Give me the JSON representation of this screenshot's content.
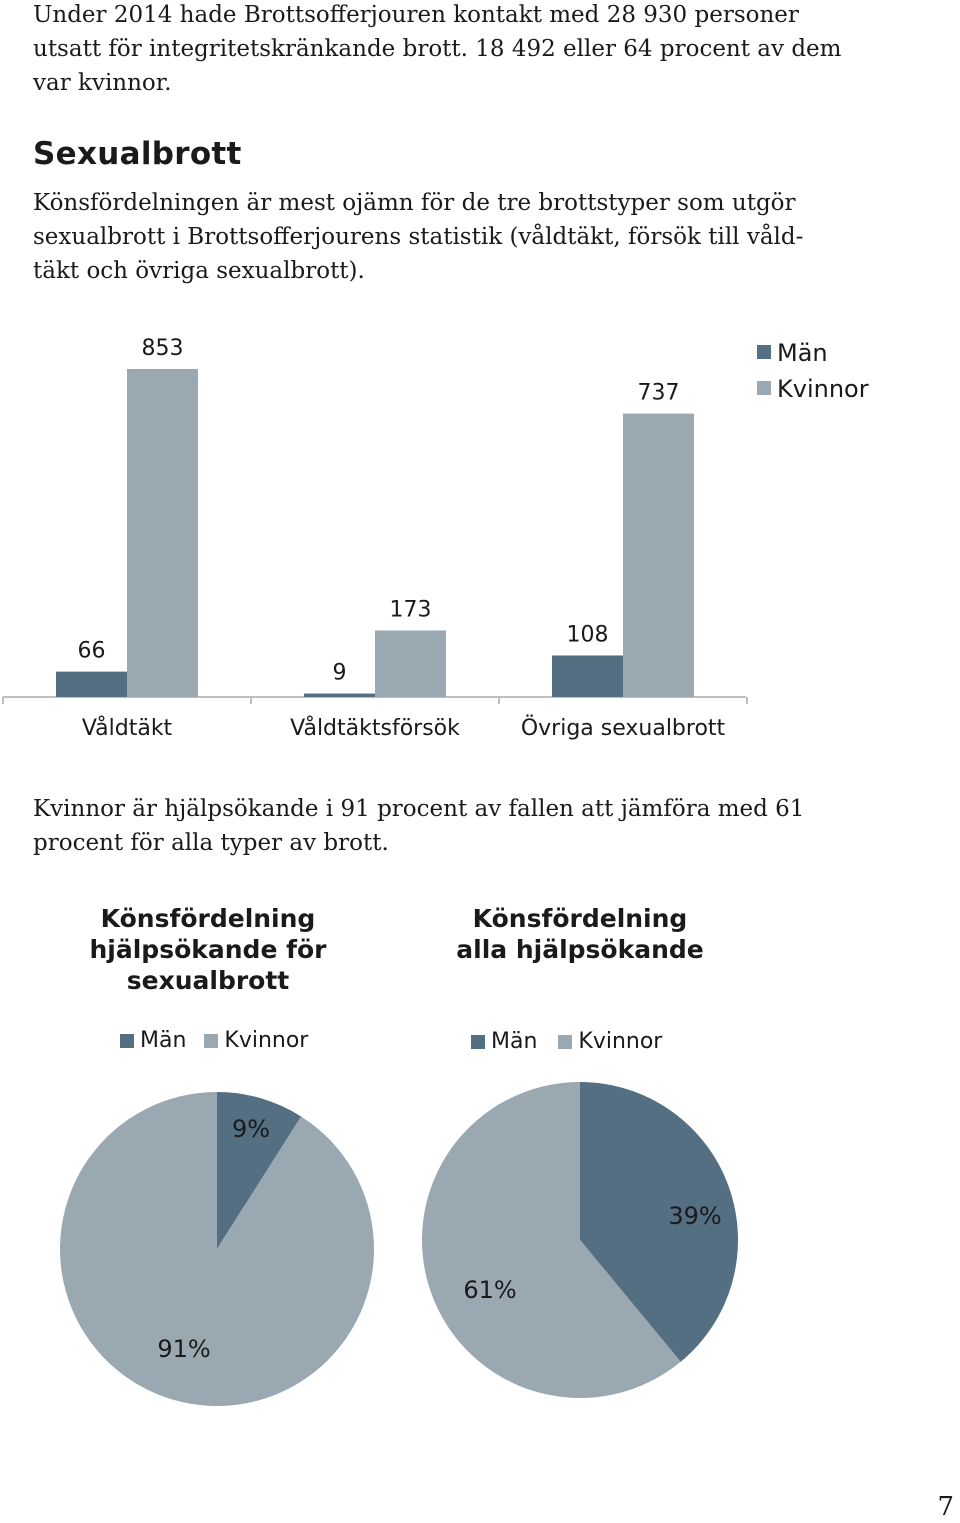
{
  "intro": {
    "lines": [
      "Under 2014 hade Brottsofferjouren kontakt med 28 930 personer",
      "utsatt för integritetskränkande brott. 18 492 eller 64 procent av dem",
      "var kvinnor."
    ]
  },
  "section": {
    "heading": "Sexualbrott",
    "lines": [
      "Könsfördelningen är mest ojämn för de tre brottstyper som utgör",
      "sexualbrott i Brottsofferjourens statistik (våldtäkt, försök till våld-",
      "täkt och övriga sexualbrott)."
    ]
  },
  "help_text": {
    "lines": [
      "Kvinnor är hjälpsökande i 91 procent av fallen att jämföra med 61",
      "procent för alla typer av brott."
    ]
  },
  "colors": {
    "men": "#546f82",
    "women": "#9aa8b2",
    "axis": "#bfbfbf"
  },
  "chart_data": [
    {
      "type": "bar",
      "categories": [
        "Våldtäkt",
        "Våldtäktsförsök",
        "Övriga sexualbrott"
      ],
      "series": [
        {
          "name": "Män",
          "values": [
            66,
            9,
            108
          ]
        },
        {
          "name": "Kvinnor",
          "values": [
            853,
            173,
            737
          ]
        }
      ],
      "ylim": [
        0,
        853
      ],
      "legend": "top-right",
      "grid": false
    },
    {
      "type": "pie",
      "title": "Könsfördelning hjälpsökande för sexualbrott",
      "title_lines": [
        "Könsfördelning",
        "hjälpsökande för",
        "sexualbrott"
      ],
      "legend": "top",
      "slices": [
        {
          "label": "Män",
          "value": 9,
          "display": "9%"
        },
        {
          "label": "Kvinnor",
          "value": 91,
          "display": "91%"
        }
      ]
    },
    {
      "type": "pie",
      "title": "Könsfördelning alla hjälpsökande",
      "title_lines": [
        "Könsfördelning",
        "alla hjälpsökande"
      ],
      "legend": "top",
      "slices": [
        {
          "label": "Män",
          "value": 39,
          "display": "39%"
        },
        {
          "label": "Kvinnor",
          "value": 61,
          "display": "61%"
        }
      ]
    }
  ],
  "page_number": "7"
}
